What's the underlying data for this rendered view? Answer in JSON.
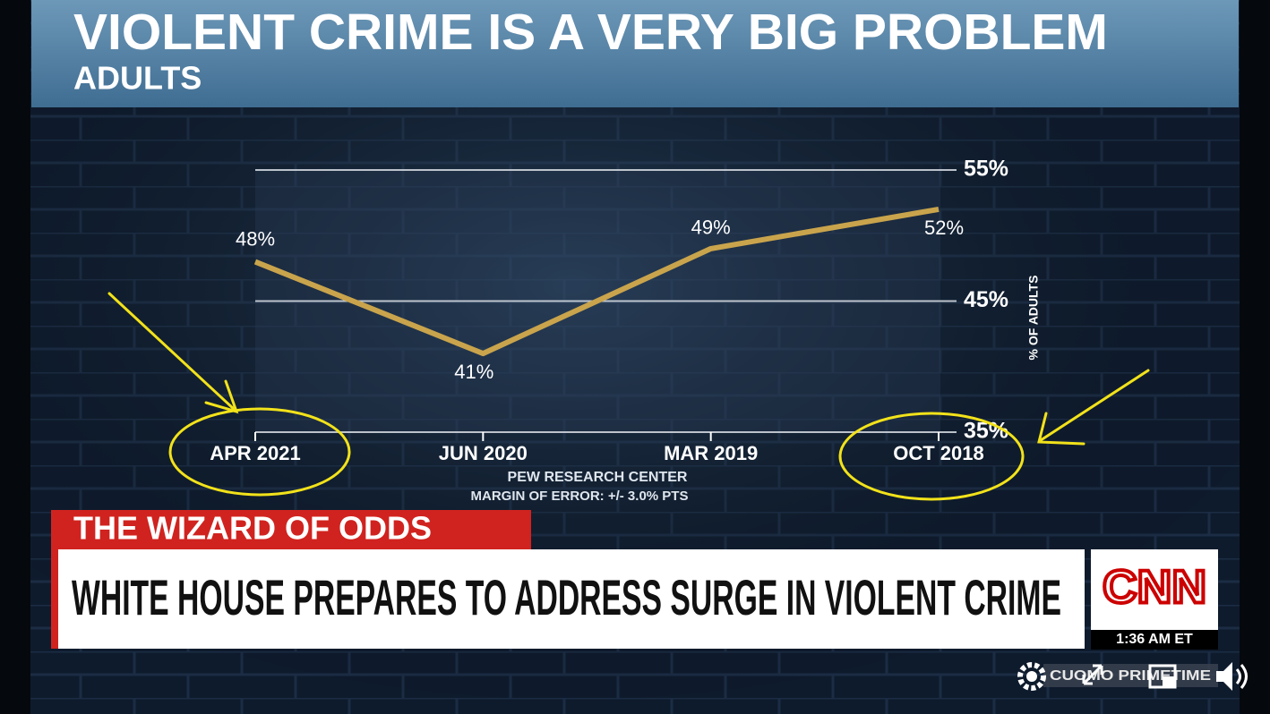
{
  "chart_data": {
    "type": "line",
    "title": "VIOLENT CRIME IS A VERY BIG PROBLEM",
    "subtitle": "ADULTS",
    "categories": [
      "APR 2021",
      "JUN 2020",
      "MAR 2019",
      "OCT 2018"
    ],
    "values": [
      48,
      41,
      49,
      52
    ],
    "value_labels": [
      "48%",
      "41%",
      "49%",
      "52%"
    ],
    "color": "#c9a44c",
    "ylim": [
      35,
      55
    ],
    "yticks": [
      {
        "value": 35,
        "label": "35%"
      },
      {
        "value": 45,
        "label": "45%"
      },
      {
        "value": 55,
        "label": "55%"
      }
    ],
    "y_label": "% OF ADULTS",
    "grid": true,
    "source": [
      "PEW RESEARCH CENTER",
      "MARGIN OF ERROR: +/- 3.0% PTS"
    ]
  },
  "broadcast": {
    "segment": "THE WIZARD OF ODDS",
    "headline": "WHITE HOUSE PREPARES TO ADDRESS SURGE IN VIOLENT CRIME",
    "network": "CNN",
    "time": "1:36 AM ET",
    "show": "CUOMO PRIMETIME"
  }
}
